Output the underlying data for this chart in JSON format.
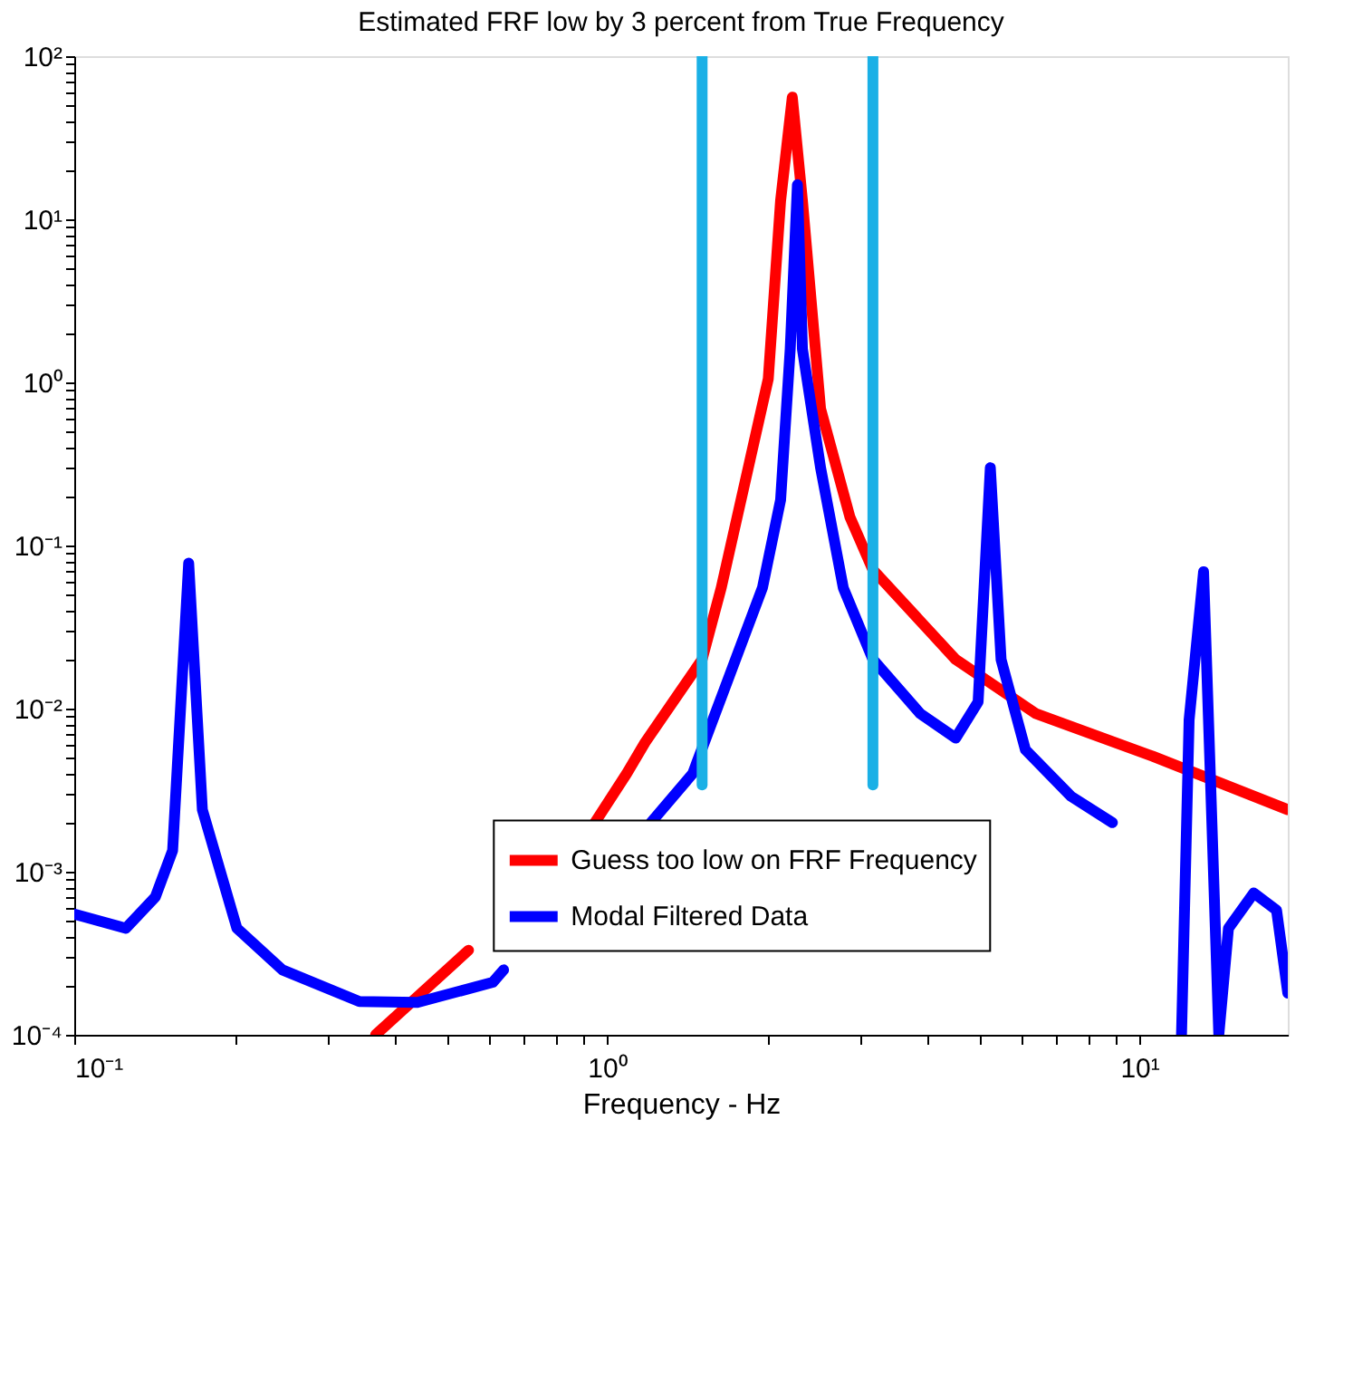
{
  "chart_data": {
    "type": "line",
    "title": "Estimated FRF low by 3 percent from True Frequency",
    "xlabel": "Frequency - Hz",
    "log": "xy",
    "grid": false,
    "legend": "bottom right",
    "line_style": "solid",
    "marker": "none",
    "xlim": [
      0.1,
      19
    ],
    "ylim": [
      0.0001,
      100
    ],
    "xticks": [
      {
        "value": 0.1,
        "label": "10⁻¹"
      },
      {
        "value": 0.2,
        "label": null
      },
      {
        "value": 0.3,
        "label": null
      },
      {
        "value": 0.4,
        "label": null
      },
      {
        "value": 0.5,
        "label": null
      },
      {
        "value": 0.6,
        "label": null
      },
      {
        "value": 0.7,
        "label": null
      },
      {
        "value": 0.8,
        "label": null
      },
      {
        "value": 0.9,
        "label": null
      },
      {
        "value": 1,
        "label": "10⁰"
      },
      {
        "value": 2,
        "label": null
      },
      {
        "value": 3,
        "label": null
      },
      {
        "value": 4,
        "label": null
      },
      {
        "value": 5,
        "label": null
      },
      {
        "value": 6,
        "label": null
      },
      {
        "value": 7,
        "label": null
      },
      {
        "value": 8,
        "label": null
      },
      {
        "value": 9,
        "label": null
      },
      {
        "value": 10,
        "label": "10¹"
      }
    ],
    "yticks": [
      {
        "value": 0.0001,
        "label": "10⁻⁴"
      },
      {
        "value": 0.0002,
        "label": null
      },
      {
        "value": 0.0003,
        "label": null
      },
      {
        "value": 0.0004,
        "label": null
      },
      {
        "value": 0.0005,
        "label": null
      },
      {
        "value": 0.0006,
        "label": null
      },
      {
        "value": 0.0007,
        "label": null
      },
      {
        "value": 0.0008,
        "label": null
      },
      {
        "value": 0.0009,
        "label": null
      },
      {
        "value": 0.001,
        "label": "10⁻³"
      },
      {
        "value": 0.002,
        "label": null
      },
      {
        "value": 0.003,
        "label": null
      },
      {
        "value": 0.004,
        "label": null
      },
      {
        "value": 0.005,
        "label": null
      },
      {
        "value": 0.006,
        "label": null
      },
      {
        "value": 0.007,
        "label": null
      },
      {
        "value": 0.008,
        "label": null
      },
      {
        "value": 0.009,
        "label": null
      },
      {
        "value": 0.01,
        "label": "10⁻²"
      },
      {
        "value": 0.02,
        "label": null
      },
      {
        "value": 0.03,
        "label": null
      },
      {
        "value": 0.04,
        "label": null
      },
      {
        "value": 0.05,
        "label": null
      },
      {
        "value": 0.06,
        "label": null
      },
      {
        "value": 0.07,
        "label": null
      },
      {
        "value": 0.08,
        "label": null
      },
      {
        "value": 0.09,
        "label": null
      },
      {
        "value": 0.1,
        "label": "10⁻¹"
      },
      {
        "value": 0.2,
        "label": null
      },
      {
        "value": 0.3,
        "label": null
      },
      {
        "value": 0.4,
        "label": null
      },
      {
        "value": 0.5,
        "label": null
      },
      {
        "value": 0.6,
        "label": null
      },
      {
        "value": 0.7,
        "label": null
      },
      {
        "value": 0.8,
        "label": null
      },
      {
        "value": 0.9,
        "label": null
      },
      {
        "value": 1,
        "label": "10⁰"
      },
      {
        "value": 2,
        "label": null
      },
      {
        "value": 3,
        "label": null
      },
      {
        "value": 4,
        "label": null
      },
      {
        "value": 5,
        "label": null
      },
      {
        "value": 6,
        "label": null
      },
      {
        "value": 7,
        "label": null
      },
      {
        "value": 8,
        "label": null
      },
      {
        "value": 9,
        "label": null
      },
      {
        "value": 10,
        "label": "10¹"
      },
      {
        "value": 20,
        "label": null
      },
      {
        "value": 30,
        "label": null
      },
      {
        "value": 40,
        "label": null
      },
      {
        "value": 50,
        "label": null
      },
      {
        "value": 60,
        "label": null
      },
      {
        "value": 70,
        "label": null
      },
      {
        "value": 80,
        "label": null
      },
      {
        "value": 90,
        "label": null
      },
      {
        "value": 100,
        "label": "10²"
      }
    ],
    "series": [
      {
        "name": "Guess too low on FRF Frequency",
        "color": "#ff0000",
        "x": [
          0.368,
          0.55,
          0.8,
          0.95,
          1.09,
          1.18,
          1.51,
          1.64,
          2.01,
          2.12,
          2.23,
          2.33,
          2.52,
          2.86,
          3.16,
          4.52,
          6.4,
          10.6,
          19
        ],
        "values": [
          0.0001,
          0.00033,
          null,
          0.002,
          0.004,
          0.0062,
          0.02,
          0.055,
          1.05,
          13,
          56,
          13,
          0.69,
          0.15,
          0.071,
          0.02,
          0.0093,
          0.0051,
          0.0024
        ]
      },
      {
        "name": "Modal Filtered Data",
        "color": "#0000ff",
        "x": [
          0.1,
          0.125,
          0.142,
          0.153,
          0.164,
          0.174,
          0.202,
          0.246,
          0.343,
          0.441,
          0.611,
          0.64,
          0.9,
          1.21,
          1.45,
          1.96,
          2.12,
          2.21,
          2.28,
          2.33,
          2.52,
          2.78,
          3.16,
          3.88,
          4.52,
          4.98,
          5.25,
          5.5,
          6.11,
          7.44,
          8.9,
          10.5,
          12.0,
          12.4,
          13.2,
          13.6,
          14.1,
          14.7,
          16.4,
          18.1,
          19
        ],
        "values": [
          0.00055,
          0.00045,
          0.0007,
          0.00135,
          0.078,
          0.0024,
          0.00045,
          0.00025,
          0.00016,
          0.000158,
          0.00021,
          0.00025,
          null,
          0.002,
          0.004,
          0.055,
          0.19,
          1.6,
          16.3,
          1.6,
          0.3,
          0.055,
          0.02,
          0.0093,
          0.0066,
          0.011,
          0.3,
          0.02,
          0.0056,
          0.0029,
          0.002,
          null,
          0.0001,
          0.0085,
          0.069,
          0.0037,
          0.0001,
          0.00045,
          0.00074,
          0.00058,
          0.00018
        ]
      },
      {
        "type": "line",
        "color": "#1ab0e6",
        "x": [
          1.51,
          1.51
        ],
        "values": [
          0.0034,
          100
        ]
      },
      {
        "type": "line",
        "color": "#1ab0e6",
        "x": [
          3.16,
          3.16
        ],
        "values": [
          0.0034,
          100
        ]
      }
    ]
  }
}
